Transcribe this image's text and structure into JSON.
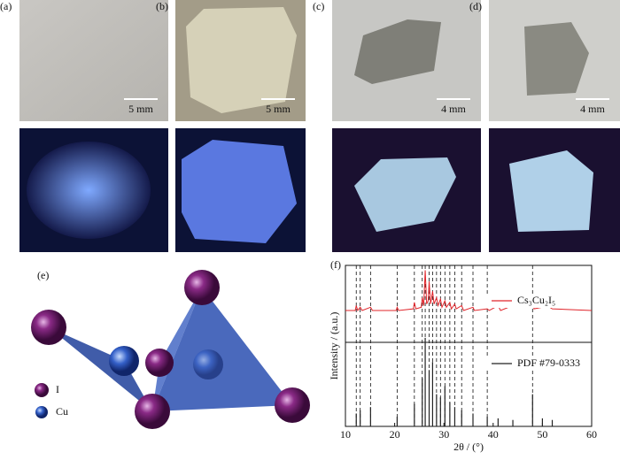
{
  "panels": [
    {
      "label": "(a)",
      "scale": "5 mm"
    },
    {
      "label": "(b)",
      "scale": "5 mm"
    },
    {
      "label": "(c)",
      "scale": "4 mm"
    },
    {
      "label": "(d)",
      "scale": "4 mm"
    }
  ],
  "structure": {
    "label": "(e)",
    "legend": [
      "I",
      "Cu"
    ]
  },
  "chart_data": {
    "type": "line",
    "panel_label": "(f)",
    "xlabel": "2θ / (°)",
    "ylabel": "Intensity / (a.u.)",
    "xlim": [
      10,
      60
    ],
    "xticks": [
      10,
      20,
      30,
      40,
      50,
      60
    ],
    "ylim": [
      0,
      100
    ],
    "reference_lines": [
      12.2,
      13,
      15.1,
      20.5,
      24,
      25.6,
      26.2,
      27,
      27.7,
      28.5,
      29.3,
      30.2,
      31.2,
      32.2,
      33.6,
      35.9,
      38.8,
      48
    ],
    "series": [
      {
        "name": "Cs₃Cu₂I₅",
        "color": "#e0242a",
        "kind": "line",
        "x": [
          10,
          12,
          12.2,
          12.5,
          13,
          13.4,
          15.1,
          15.5,
          20.3,
          20.5,
          20.8,
          23.8,
          24,
          24.3,
          25.4,
          25.6,
          25.9,
          26.2,
          26.5,
          26.8,
          27,
          27.3,
          27.7,
          28,
          28.5,
          28.8,
          29.3,
          29.6,
          30.2,
          30.5,
          31.2,
          31.5,
          32.2,
          32.5,
          33.6,
          34,
          35.9,
          36.2,
          38.8,
          39.2,
          41,
          41.5,
          48,
          48.3,
          50,
          51,
          52,
          60
        ],
        "values": [
          72,
          72,
          75,
          72,
          74,
          72,
          74,
          72,
          72,
          74,
          72,
          73,
          77,
          73,
          74,
          80,
          75,
          97,
          76,
          78,
          90,
          76,
          84,
          76,
          80,
          75,
          79,
          74,
          78,
          74,
          77,
          73,
          76,
          73,
          75,
          72,
          74,
          72,
          73,
          72,
          75,
          72,
          80,
          73,
          74,
          75,
          73,
          72
        ]
      },
      {
        "name": "PDF #79-0333",
        "color": "#222222",
        "kind": "stick",
        "x": [
          12.2,
          13,
          15.1,
          20.5,
          24,
          25.6,
          26.2,
          27,
          27.7,
          28.5,
          29.3,
          30.2,
          31.2,
          32.2,
          33.6,
          35.9,
          38.8,
          41,
          44,
          48,
          50,
          52
        ],
        "values": [
          8,
          10,
          12,
          6,
          14,
          30,
          55,
          35,
          40,
          20,
          18,
          25,
          15,
          12,
          10,
          8,
          6,
          5,
          4,
          20,
          5,
          4
        ]
      }
    ]
  }
}
